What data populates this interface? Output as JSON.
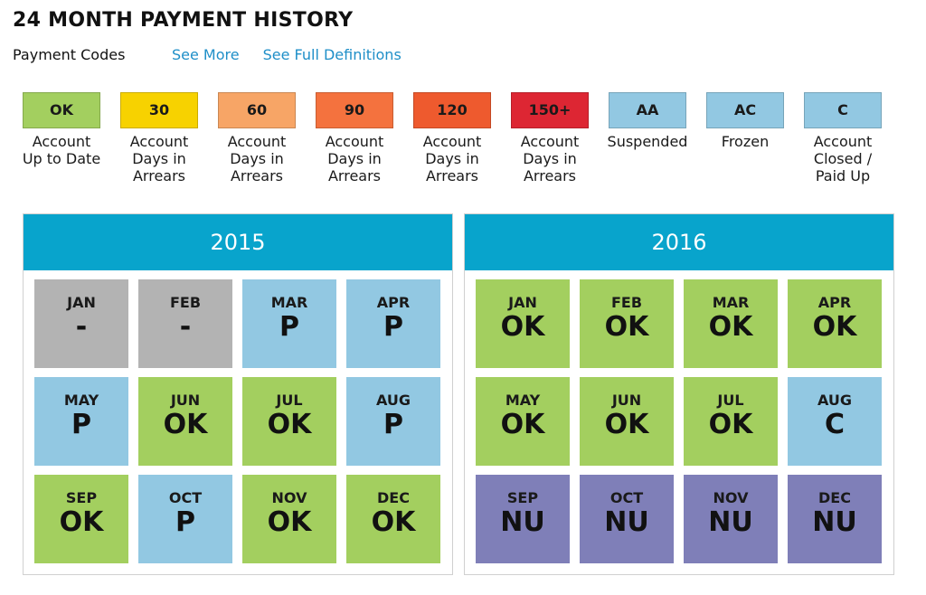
{
  "page_title": "24 MONTH PAYMENT HISTORY",
  "payment_codes": {
    "label": "Payment Codes",
    "see_more": "See More",
    "see_full": "See Full Definitions"
  },
  "legend": [
    {
      "code": "OK",
      "lines": [
        "Account",
        "Up to Date"
      ],
      "color": "#a3cf5f"
    },
    {
      "code": "30",
      "lines": [
        "Account",
        "Days in",
        "Arrears"
      ],
      "color": "#f7d200"
    },
    {
      "code": "60",
      "lines": [
        "Account",
        "Days in",
        "Arrears"
      ],
      "color": "#f7a566"
    },
    {
      "code": "90",
      "lines": [
        "Account",
        "Days in",
        "Arrears"
      ],
      "color": "#f4723e"
    },
    {
      "code": "120",
      "lines": [
        "Account",
        "Days in",
        "Arrears"
      ],
      "color": "#ee5a2e"
    },
    {
      "code": "150+",
      "lines": [
        "Account",
        "Days in",
        "Arrears"
      ],
      "color": "#dd2633"
    },
    {
      "code": "AA",
      "lines": [
        "Suspended"
      ],
      "color": "#92c8e2"
    },
    {
      "code": "AC",
      "lines": [
        "Frozen"
      ],
      "color": "#92c8e2"
    },
    {
      "code": "C",
      "lines": [
        "Account",
        "Closed /",
        "Paid Up"
      ],
      "color": "#92c8e2"
    }
  ],
  "status_colors": {
    "-": "#b3b3b3",
    "P": "#92c8e2",
    "OK": "#a3cf5f",
    "C": "#92c8e2",
    "NU": "#7f7fb8"
  },
  "header_color": "#08a4cc",
  "years": [
    {
      "year": "2015",
      "months": [
        {
          "month": "JAN",
          "code": "-"
        },
        {
          "month": "FEB",
          "code": "-"
        },
        {
          "month": "MAR",
          "code": "P"
        },
        {
          "month": "APR",
          "code": "P"
        },
        {
          "month": "MAY",
          "code": "P"
        },
        {
          "month": "JUN",
          "code": "OK"
        },
        {
          "month": "JUL",
          "code": "OK"
        },
        {
          "month": "AUG",
          "code": "P"
        },
        {
          "month": "SEP",
          "code": "OK"
        },
        {
          "month": "OCT",
          "code": "P"
        },
        {
          "month": "NOV",
          "code": "OK"
        },
        {
          "month": "DEC",
          "code": "OK"
        }
      ]
    },
    {
      "year": "2016",
      "months": [
        {
          "month": "JAN",
          "code": "OK"
        },
        {
          "month": "FEB",
          "code": "OK"
        },
        {
          "month": "MAR",
          "code": "OK"
        },
        {
          "month": "APR",
          "code": "OK"
        },
        {
          "month": "MAY",
          "code": "OK"
        },
        {
          "month": "JUN",
          "code": "OK"
        },
        {
          "month": "JUL",
          "code": "OK"
        },
        {
          "month": "AUG",
          "code": "C"
        },
        {
          "month": "SEP",
          "code": "NU"
        },
        {
          "month": "OCT",
          "code": "NU"
        },
        {
          "month": "NOV",
          "code": "NU"
        },
        {
          "month": "DEC",
          "code": "NU"
        }
      ]
    }
  ]
}
